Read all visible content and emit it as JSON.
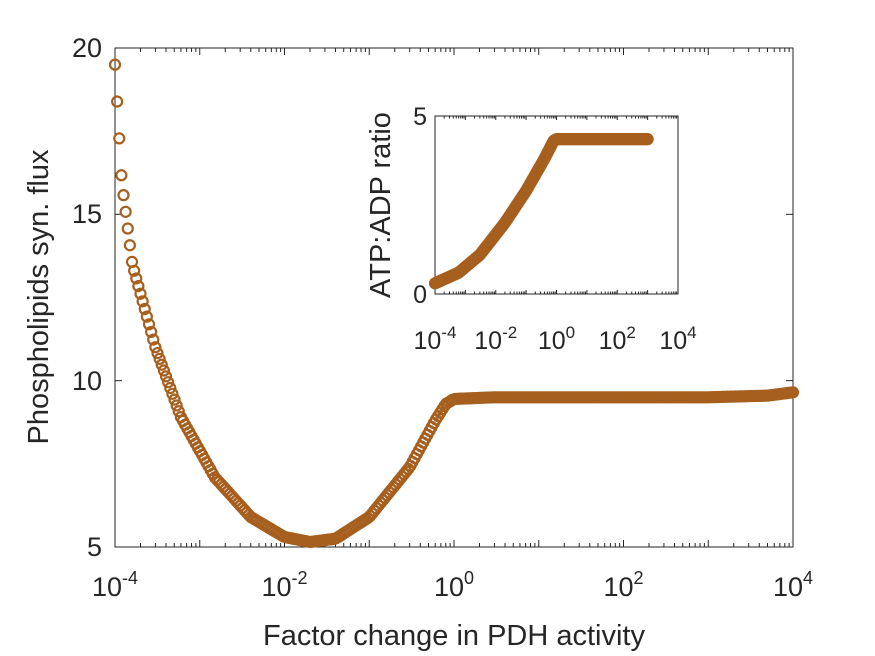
{
  "chart_data": [
    {
      "type": "scatter",
      "panel": "main",
      "xscale": "log",
      "xlim": [
        0.0001,
        10000
      ],
      "ylim": [
        5,
        20
      ],
      "xlabel": "Factor change in PDH activity",
      "ylabel": "Phospholipids syn. flux",
      "xticks": [
        {
          "base": "10",
          "exp": "-4"
        },
        {
          "base": "10",
          "exp": "-2"
        },
        {
          "base": "10",
          "exp": "0"
        },
        {
          "base": "10",
          "exp": "2"
        },
        {
          "base": "10",
          "exp": "4"
        }
      ],
      "yticks": [
        "5",
        "10",
        "15",
        "20"
      ],
      "marker": "open-circle",
      "color": "#A65F1E",
      "curve_points": [
        {
          "x": 0.0001,
          "y": 19.5
        },
        {
          "x": 0.00012,
          "y": 16.0
        },
        {
          "x": 0.00016,
          "y": 13.5
        },
        {
          "x": 0.0003,
          "y": 11.0
        },
        {
          "x": 0.0006,
          "y": 8.9
        },
        {
          "x": 0.0015,
          "y": 7.1
        },
        {
          "x": 0.004,
          "y": 5.9
        },
        {
          "x": 0.01,
          "y": 5.3
        },
        {
          "x": 0.02,
          "y": 5.15
        },
        {
          "x": 0.04,
          "y": 5.25
        },
        {
          "x": 0.1,
          "y": 5.9
        },
        {
          "x": 0.3,
          "y": 7.4
        },
        {
          "x": 0.6,
          "y": 8.8
        },
        {
          "x": 0.8,
          "y": 9.3
        },
        {
          "x": 1.0,
          "y": 9.45
        },
        {
          "x": 3.0,
          "y": 9.5
        },
        {
          "x": 100,
          "y": 9.5
        },
        {
          "x": 1000,
          "y": 9.5
        },
        {
          "x": 5000,
          "y": 9.55
        },
        {
          "x": 10000,
          "y": 9.65
        }
      ]
    },
    {
      "type": "scatter",
      "panel": "inset",
      "xscale": "log",
      "xlim": [
        0.0001,
        10000
      ],
      "ylim": [
        0,
        5
      ],
      "xlabel": "",
      "ylabel": "ATP:ADP ratio",
      "xticks": [
        {
          "base": "10",
          "exp": "-4"
        },
        {
          "base": "10",
          "exp": "-2"
        },
        {
          "base": "10",
          "exp": "0"
        },
        {
          "base": "10",
          "exp": "2"
        },
        {
          "base": "10",
          "exp": "4"
        }
      ],
      "yticks": [
        "0",
        "5"
      ],
      "marker": "open-circle",
      "color": "#A65F1E",
      "curve_points": [
        {
          "x": 0.0001,
          "y": 0.3
        },
        {
          "x": 0.0006,
          "y": 0.6
        },
        {
          "x": 0.003,
          "y": 1.1
        },
        {
          "x": 0.02,
          "y": 2.0
        },
        {
          "x": 0.1,
          "y": 2.9
        },
        {
          "x": 0.4,
          "y": 3.8
        },
        {
          "x": 0.8,
          "y": 4.3
        },
        {
          "x": 1.0,
          "y": 4.35
        },
        {
          "x": 100,
          "y": 4.35
        },
        {
          "x": 1000,
          "y": 4.35
        }
      ]
    }
  ]
}
